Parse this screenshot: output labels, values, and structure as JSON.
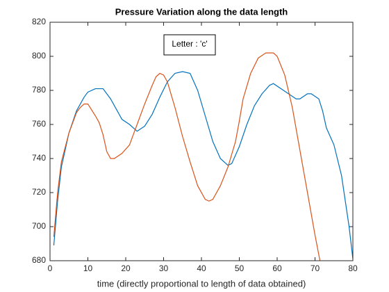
{
  "chart_data": {
    "type": "line",
    "title": "Pressure Variation along the data length",
    "xlabel": "time (directly proportional to length of data obtained)",
    "annotation": "Letter : 'c'",
    "xlim": [
      0,
      80
    ],
    "xticks": [
      0,
      10,
      20,
      30,
      40,
      50,
      60,
      70,
      80
    ],
    "ylim": [
      680,
      820
    ],
    "yticks": [
      680,
      700,
      720,
      740,
      760,
      780,
      800,
      820
    ],
    "grid": false,
    "series": [
      {
        "color": "#0072bd",
        "x": [
          1,
          2,
          3,
          5,
          7,
          9,
          10,
          12,
          14,
          16,
          18,
          19,
          21,
          23,
          25,
          27,
          29,
          31,
          33,
          35,
          37,
          39,
          41,
          43,
          45,
          47,
          48,
          50,
          52,
          54,
          56,
          58,
          59,
          61,
          63,
          65,
          66,
          68,
          69,
          71,
          72,
          73,
          75,
          77,
          78,
          79,
          80
        ],
        "values": [
          689,
          715,
          735,
          755,
          768,
          776,
          779,
          781,
          781,
          775,
          767,
          763,
          760,
          756,
          759,
          766,
          776,
          785,
          790,
          791,
          790,
          780,
          765,
          750,
          740,
          736,
          737,
          747,
          760,
          771,
          778,
          783,
          784,
          781,
          778,
          775,
          775,
          778,
          778,
          775,
          768,
          758,
          748,
          730,
          715,
          700,
          681
        ]
      },
      {
        "color": "#d95319",
        "x": [
          1,
          2,
          3,
          5,
          7,
          8,
          9,
          10,
          12,
          13,
          14,
          15,
          16,
          17,
          19,
          21,
          23,
          25,
          27,
          28,
          29,
          30,
          31,
          33,
          35,
          37,
          39,
          41,
          42,
          43,
          45,
          47,
          49,
          50,
          51,
          53,
          55,
          57,
          59,
          60,
          62,
          64,
          66,
          68,
          70,
          71.3
        ],
        "values": [
          694,
          720,
          738,
          755,
          767,
          770,
          772,
          772,
          765,
          761,
          754,
          744,
          740,
          740,
          743,
          748,
          760,
          772,
          783,
          788,
          790,
          789,
          785,
          770,
          753,
          738,
          724,
          716,
          715,
          716,
          724,
          735,
          750,
          762,
          775,
          790,
          799,
          802,
          802,
          800,
          789,
          770,
          745,
          720,
          695,
          680
        ]
      }
    ]
  }
}
